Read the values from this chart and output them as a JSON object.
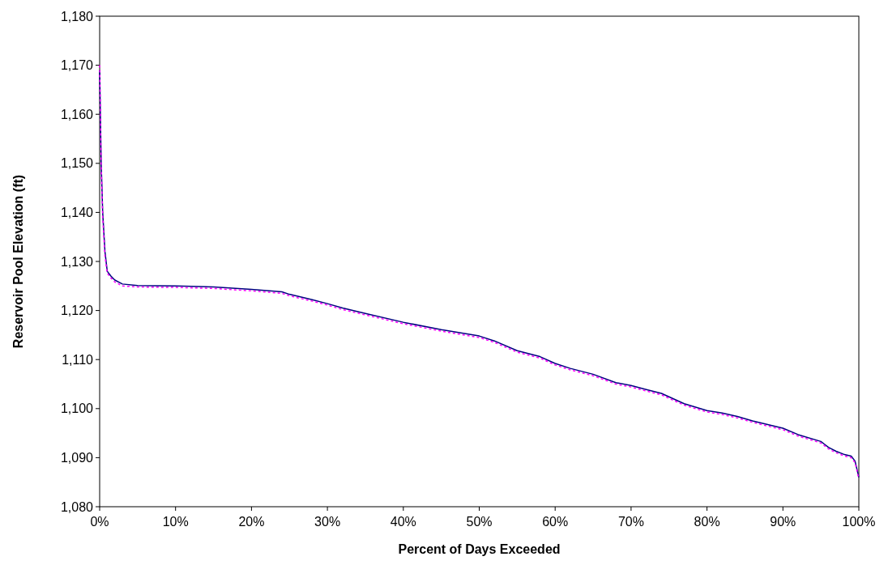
{
  "chart_data": {
    "type": "line",
    "xlabel": "Percent of Days Exceeded",
    "ylabel": "Reservoir Pool Elevation (ft)",
    "xlim": [
      0,
      100
    ],
    "xticks": [
      {
        "value": 0,
        "label": "0%"
      },
      {
        "value": 10,
        "label": "10%"
      },
      {
        "value": 20,
        "label": "20%"
      },
      {
        "value": 30,
        "label": "30%"
      },
      {
        "value": 40,
        "label": "40%"
      },
      {
        "value": 50,
        "label": "50%"
      },
      {
        "value": 60,
        "label": "60%"
      },
      {
        "value": 70,
        "label": "70%"
      },
      {
        "value": 80,
        "label": "80%"
      },
      {
        "value": 90,
        "label": "90%"
      },
      {
        "value": 100,
        "label": "100%"
      }
    ],
    "ylim": [
      1080,
      1180
    ],
    "yticks": [
      {
        "value": 1080,
        "label": "1,080"
      },
      {
        "value": 1090,
        "label": "1,090"
      },
      {
        "value": 1100,
        "label": "1,100"
      },
      {
        "value": 1110,
        "label": "1,110"
      },
      {
        "value": 1120,
        "label": "1,120"
      },
      {
        "value": 1130,
        "label": "1,130"
      },
      {
        "value": 1140,
        "label": "1,140"
      },
      {
        "value": 1150,
        "label": "1,150"
      },
      {
        "value": 1160,
        "label": "1,160"
      },
      {
        "value": 1170,
        "label": "1,170"
      },
      {
        "value": 1180,
        "label": "1,180"
      }
    ],
    "grid": false,
    "marker": "none",
    "series": [
      {
        "color": "#000080",
        "line_style": "solid",
        "x": [
          0,
          0.2,
          0.4,
          0.7,
          1,
          1.5,
          2,
          3,
          5,
          10,
          15,
          20,
          24,
          25,
          28,
          30,
          32,
          35,
          40,
          45,
          50,
          52,
          55,
          58,
          60,
          62,
          65,
          68,
          70,
          72,
          74,
          75,
          77,
          80,
          82,
          84,
          86,
          90,
          92,
          95,
          96,
          97,
          98,
          99,
          99.5,
          100
        ],
        "values": [
          1169,
          1150,
          1140,
          1132,
          1128,
          1127,
          1126.2,
          1125.4,
          1125.1,
          1125,
          1124.8,
          1124.3,
          1123.8,
          1123.3,
          1122.2,
          1121.4,
          1120.5,
          1119.4,
          1117.6,
          1116.1,
          1114.8,
          1113.8,
          1111.8,
          1110.6,
          1109.2,
          1108.2,
          1107,
          1105.3,
          1104.7,
          1103.9,
          1103.1,
          1102.4,
          1101,
          1099.6,
          1099.1,
          1098.4,
          1097.5,
          1096,
          1094.7,
          1093.3,
          1092.1,
          1091.3,
          1090.7,
          1090.3,
          1089.3,
          1086
        ]
      },
      {
        "color": "#ff00ff",
        "line_style": "dotted",
        "x": [
          0,
          0.2,
          0.4,
          0.7,
          1,
          1.5,
          2,
          3,
          5,
          10,
          15,
          20,
          24,
          25,
          28,
          30,
          32,
          35,
          40,
          45,
          50,
          52,
          55,
          58,
          60,
          62,
          65,
          68,
          70,
          72,
          74,
          75,
          77,
          80,
          82,
          84,
          86,
          90,
          92,
          95,
          96,
          97,
          98,
          99,
          99.5,
          100
        ],
        "values": [
          1170,
          1150,
          1139,
          1131,
          1127.6,
          1126.6,
          1125.8,
          1125,
          1124.8,
          1124.7,
          1124.5,
          1124,
          1123.5,
          1123,
          1121.9,
          1121.1,
          1120.2,
          1119.1,
          1117.3,
          1115.8,
          1114.5,
          1113.5,
          1111.5,
          1110.3,
          1108.9,
          1107.9,
          1106.7,
          1105,
          1104.4,
          1103.6,
          1102.8,
          1102.1,
          1100.7,
          1099.3,
          1098.8,
          1098.1,
          1097.2,
          1095.7,
          1094.4,
          1093,
          1091.8,
          1091,
          1090.4,
          1090,
          1089,
          1085.7
        ]
      }
    ]
  }
}
